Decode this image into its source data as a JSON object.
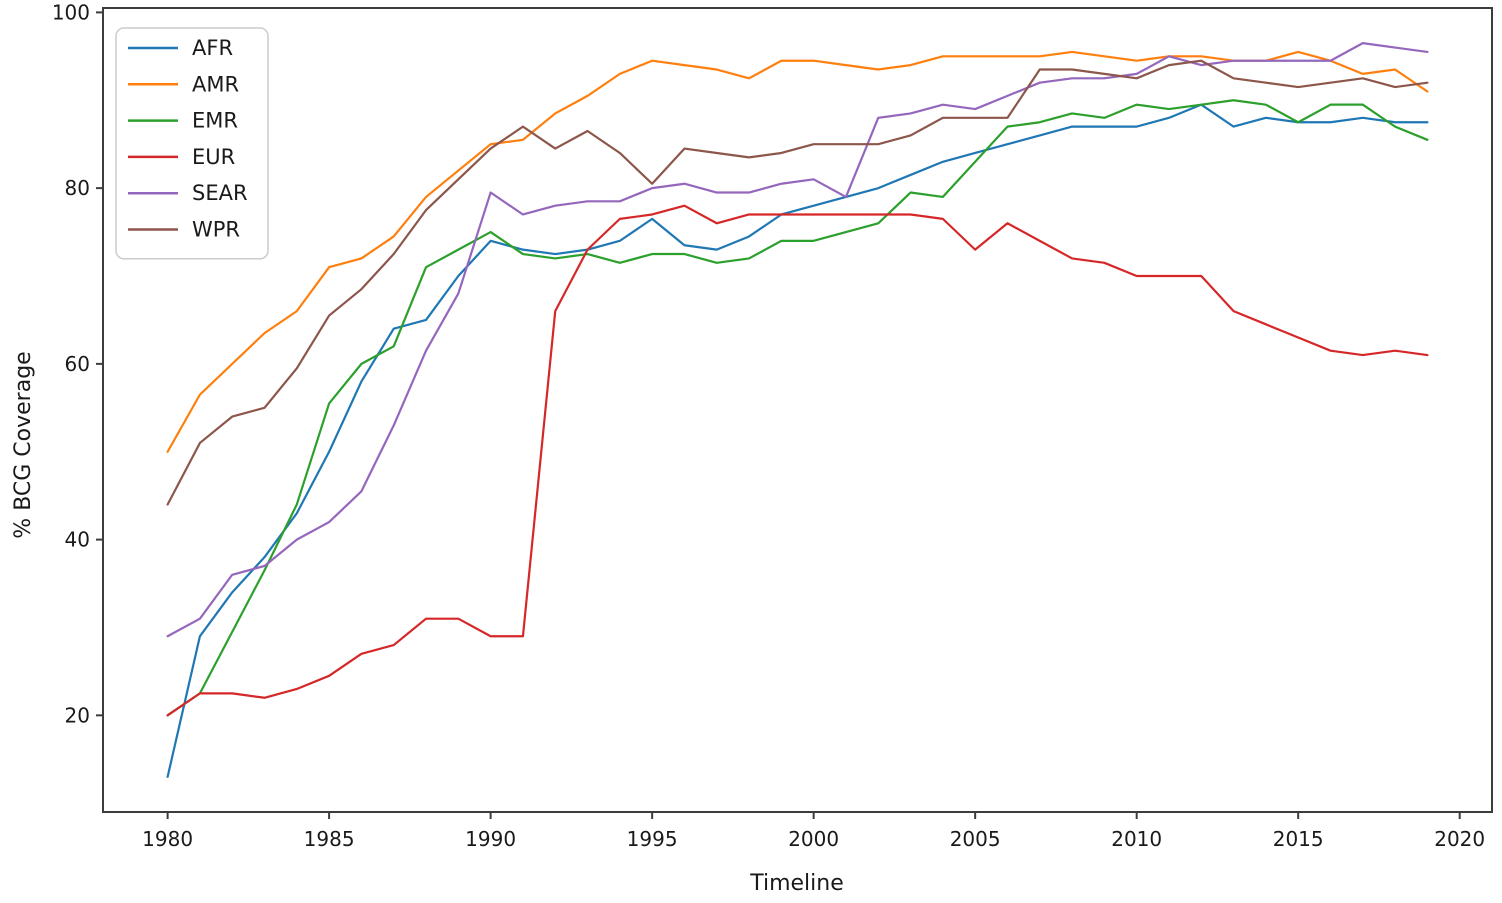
{
  "chart_data": {
    "type": "line",
    "title": "",
    "xlabel": "Timeline",
    "ylabel": "% BCG Coverage",
    "grid": false,
    "legend_position": "upper-left",
    "xlim": [
      1978,
      2021
    ],
    "ylim": [
      9,
      100.5
    ],
    "xticks": [
      1980,
      1985,
      1990,
      1995,
      2000,
      2005,
      2010,
      2015,
      2020
    ],
    "yticks": [
      20,
      40,
      60,
      80,
      100
    ],
    "x": [
      1980,
      1981,
      1982,
      1983,
      1984,
      1985,
      1986,
      1987,
      1988,
      1989,
      1990,
      1991,
      1992,
      1993,
      1994,
      1995,
      1996,
      1997,
      1998,
      1999,
      2000,
      2001,
      2002,
      2003,
      2004,
      2005,
      2006,
      2007,
      2008,
      2009,
      2010,
      2011,
      2012,
      2013,
      2014,
      2015,
      2016,
      2017,
      2018,
      2019
    ],
    "series": [
      {
        "name": "AFR",
        "color": "#1f77b4",
        "values": [
          13,
          29,
          34,
          38,
          43,
          50,
          58,
          64,
          65,
          70,
          74,
          73,
          72.5,
          73,
          74,
          76.5,
          73.5,
          73,
          74.5,
          77,
          78,
          79,
          80,
          81.5,
          83,
          84,
          85,
          86,
          87,
          87,
          87,
          88,
          89.5,
          87,
          88,
          87.5,
          87.5,
          88,
          87.5,
          87.5
        ]
      },
      {
        "name": "AMR",
        "color": "#ff7f0e",
        "values": [
          50,
          56.5,
          60,
          63.5,
          66,
          71,
          72,
          74.5,
          79,
          82,
          85,
          85.5,
          88.5,
          90.5,
          93,
          94.5,
          94,
          93.5,
          92.5,
          94.5,
          94.5,
          94,
          93.5,
          94,
          95,
          95,
          95,
          95,
          95.5,
          95,
          94.5,
          95,
          95,
          94.5,
          94.5,
          95.5,
          94.5,
          93,
          93.5,
          91
        ]
      },
      {
        "name": "EMR",
        "color": "#2ca02c",
        "values": [
          20,
          22.5,
          29.5,
          36.5,
          44,
          55.5,
          60,
          62,
          71,
          73,
          75,
          72.5,
          72,
          72.5,
          71.5,
          72.5,
          72.5,
          71.5,
          72,
          74,
          74,
          75,
          76,
          79.5,
          79,
          83,
          87,
          87.5,
          88.5,
          88,
          89.5,
          89,
          89.5,
          90,
          89.5,
          87.5,
          89.5,
          89.5,
          87,
          85.5
        ]
      },
      {
        "name": "EUR",
        "color": "#d62728",
        "values": [
          20,
          22.5,
          22.5,
          22,
          23,
          24.5,
          27,
          28,
          31,
          31,
          29,
          29,
          66,
          73,
          76.5,
          77,
          78,
          76,
          77,
          77,
          77,
          77,
          77,
          77,
          76.5,
          73,
          76,
          74,
          72,
          71.5,
          70,
          70,
          70,
          66,
          64.5,
          63,
          61.5,
          61,
          61.5,
          61
        ]
      },
      {
        "name": "SEAR",
        "color": "#9467bd",
        "values": [
          29,
          31,
          36,
          37,
          40,
          42,
          45.5,
          53,
          61.5,
          68,
          79.5,
          77,
          78,
          78.5,
          78.5,
          80,
          80.5,
          79.5,
          79.5,
          80.5,
          81,
          79,
          88,
          88.5,
          89.5,
          89,
          90.5,
          92,
          92.5,
          92.5,
          93,
          95,
          94,
          94.5,
          94.5,
          94.5,
          94.5,
          96.5,
          96,
          95.5
        ]
      },
      {
        "name": "WPR",
        "color": "#8c564b",
        "values": [
          44,
          51,
          54,
          55,
          59.5,
          65.5,
          68.5,
          72.5,
          77.5,
          81,
          84.5,
          87,
          84.5,
          86.5,
          84,
          80.5,
          84.5,
          84,
          83.5,
          84,
          85,
          85,
          85,
          86,
          88,
          88,
          88,
          93.5,
          93.5,
          93,
          92.5,
          94,
          94.5,
          92.5,
          92,
          91.5,
          92,
          92.5,
          91.5,
          92
        ]
      }
    ]
  }
}
